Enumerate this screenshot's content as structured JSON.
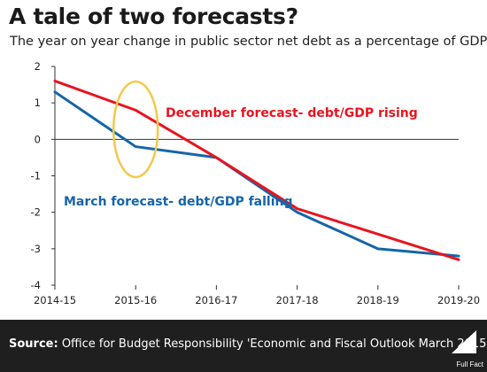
{
  "chart_data": {
    "type": "line",
    "title": "A tale of two forecasts?",
    "subtitle": "The year on year change in public sector net debt as a percentage of GDP",
    "categories": [
      "2014-15",
      "2015-16",
      "2016-17",
      "2017-18",
      "2018-19",
      "2019-20"
    ],
    "y_ticks": [
      "2",
      "1",
      "0",
      "-1",
      "-2",
      "-3",
      "-4"
    ],
    "ylim": [
      -4,
      2
    ],
    "grid": false,
    "series": [
      {
        "name": "December forecast- debt/GDP rising",
        "color": "#e8141e",
        "values": [
          1.6,
          0.8,
          -0.5,
          -1.9,
          -2.6,
          -3.3
        ]
      },
      {
        "name": "March forecast- debt/GDP falling",
        "color": "#1565a8",
        "values": [
          1.3,
          -0.2,
          -0.5,
          -2.0,
          -3.0,
          -3.2
        ]
      }
    ],
    "highlight": {
      "category": "2015-16",
      "color": "#f2c94c"
    }
  },
  "footer": {
    "source_label": "Source:",
    "source_text": "Office for Budget Responsibility 'Economic and Fiscal Outlook March 2015'",
    "brand": "Full Fact",
    "brand_icon": "fullfact-logo-icon"
  }
}
